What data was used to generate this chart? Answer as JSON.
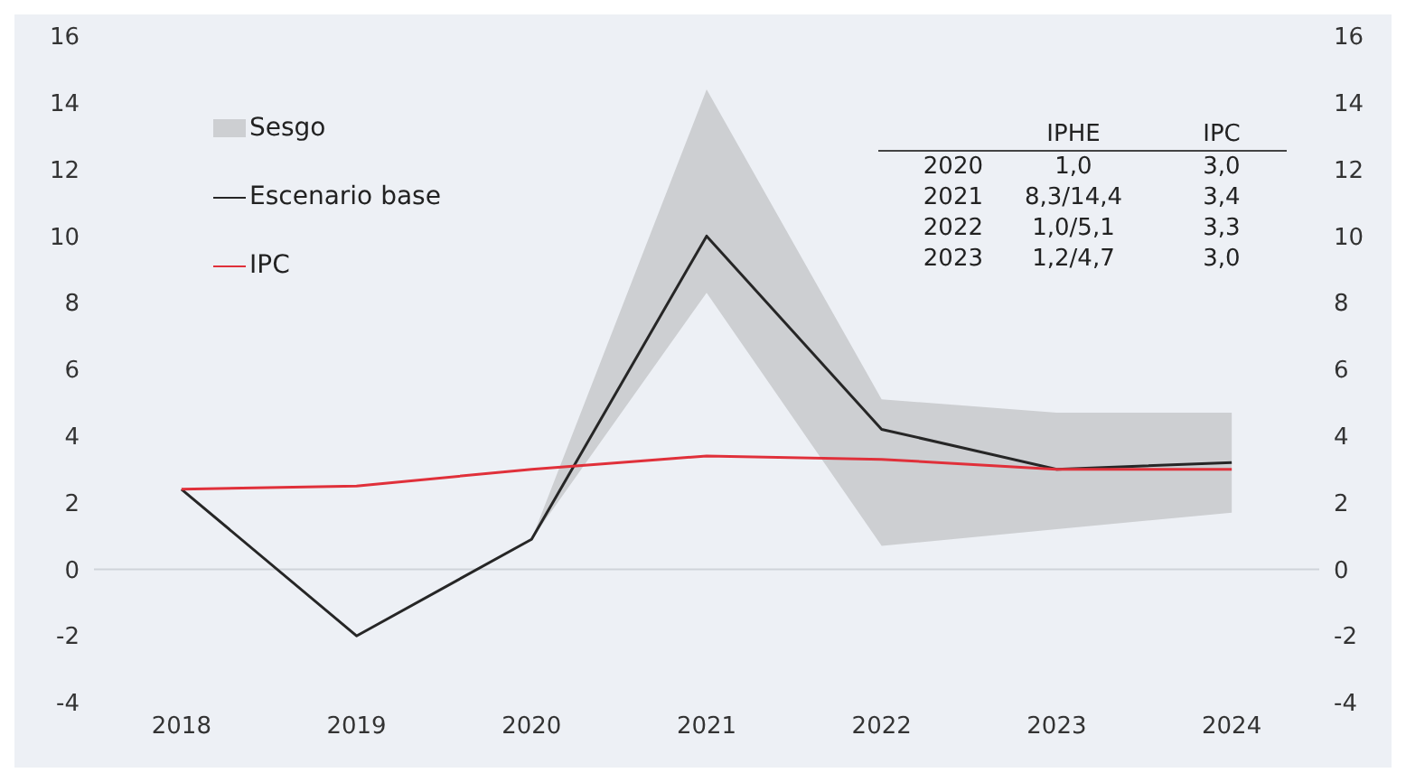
{
  "chart_data": {
    "type": "line",
    "categories": [
      "2018",
      "2019",
      "2020",
      "2021",
      "2022",
      "2023",
      "2024"
    ],
    "series": [
      {
        "name": "Escenario base",
        "color": "#262626",
        "values": [
          2.4,
          -2.0,
          0.9,
          10.0,
          4.2,
          3.0,
          3.2
        ],
        "lower": [
          null,
          null,
          0.9,
          8.3,
          0.7,
          1.2,
          1.7
        ],
        "upper": [
          null,
          null,
          0.9,
          14.4,
          5.1,
          4.7,
          4.7
        ]
      },
      {
        "name": "IPC",
        "color": "#e0303a",
        "values": [
          2.4,
          2.5,
          3.0,
          3.4,
          3.3,
          3.0,
          3.0
        ]
      }
    ],
    "ylim": [
      -4,
      16
    ],
    "yticks": [
      -4,
      -2,
      0,
      2,
      4,
      6,
      8,
      10,
      12,
      14,
      16
    ],
    "y2lim": [
      -4,
      16
    ],
    "y2ticks": [
      -4,
      -2,
      0,
      2,
      4,
      6,
      8,
      10,
      12,
      14,
      16
    ],
    "annotations": [
      "Sesgo",
      "IPHE",
      "IPC",
      "2020",
      "1,0",
      "3,0",
      "2021",
      "8,3/14,4",
      "3,4",
      "2022",
      "1,0/5,1",
      "3,3",
      "2023",
      "1,2/4,7",
      "3,0"
    ],
    "ref_lines": [
      {
        "axis": "y",
        "value": 0,
        "color": "#cfd3d9"
      }
    ],
    "legend": "top left",
    "grid": false,
    "marker": "none",
    "line_style": "solid"
  }
}
